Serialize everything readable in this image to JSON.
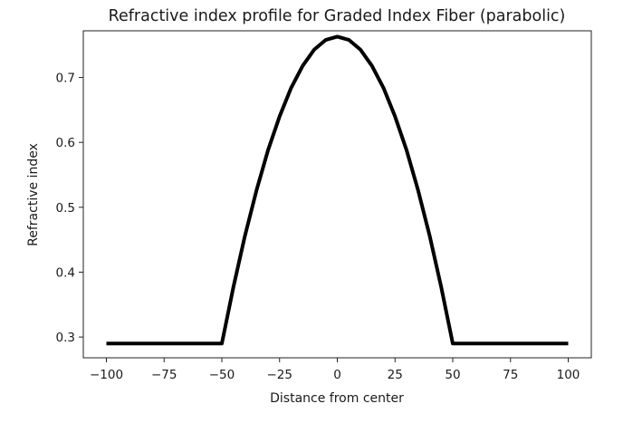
{
  "chart_data": {
    "type": "line",
    "title": "Refractive index profile for Graded Index Fiber (parabolic)",
    "xlabel": "Distance from center",
    "ylabel": "Refractive index",
    "xlim": [
      -110,
      110
    ],
    "ylim": [
      0.268,
      0.772
    ],
    "xticks": [
      -100,
      -75,
      -50,
      -25,
      0,
      25,
      50,
      75,
      100
    ],
    "xtick_labels": [
      "−100",
      "−75",
      "−50",
      "−25",
      "0",
      "25",
      "50",
      "75",
      "100"
    ],
    "yticks": [
      0.3,
      0.4,
      0.5,
      0.6,
      0.7
    ],
    "ytick_labels": [
      "0.3",
      "0.4",
      "0.5",
      "0.6",
      "0.7"
    ],
    "grid": false,
    "line_color": "#000000",
    "series": [
      {
        "x": [
          -100,
          -90,
          -80,
          -70,
          -60,
          -50,
          -45,
          -40,
          -35,
          -30,
          -25,
          -20,
          -15,
          -10,
          -5,
          0,
          5,
          10,
          15,
          20,
          25,
          30,
          35,
          40,
          45,
          50,
          60,
          70,
          80,
          90,
          100
        ],
        "y": [
          0.29,
          0.29,
          0.29,
          0.29,
          0.29,
          0.29,
          0.377,
          0.456,
          0.526,
          0.588,
          0.64,
          0.684,
          0.718,
          0.743,
          0.758,
          0.763,
          0.758,
          0.743,
          0.718,
          0.684,
          0.64,
          0.588,
          0.526,
          0.456,
          0.377,
          0.29,
          0.29,
          0.29,
          0.29,
          0.29,
          0.29
        ]
      }
    ]
  }
}
